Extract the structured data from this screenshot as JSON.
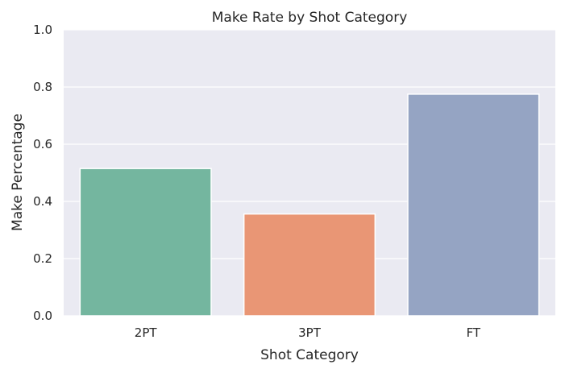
{
  "chart_data": {
    "type": "bar",
    "title": "Make Rate by Shot Category",
    "xlabel": "Shot Category",
    "ylabel": "Make Percentage",
    "categories": [
      "2PT",
      "3PT",
      "FT"
    ],
    "values": [
      0.515,
      0.356,
      0.775
    ],
    "ylim": [
      0,
      1.0
    ],
    "yticks": [
      "0.0",
      "0.2",
      "0.4",
      "0.6",
      "0.8",
      "1.0"
    ],
    "grid": true,
    "colors": [
      "#74b69f",
      "#e99675",
      "#95a4c3"
    ],
    "background": "#eaeaf2"
  }
}
